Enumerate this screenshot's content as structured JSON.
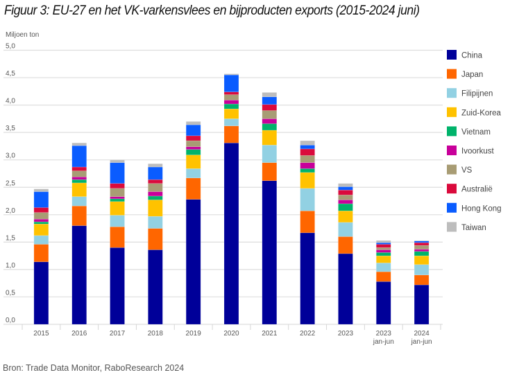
{
  "header": {
    "title": "Figuur 3: EU-27 en het VK-varkensvlees en bijproducten exports (2015-2024 juni)"
  },
  "footer": {
    "source": "Bron: Trade Data Monitor, RaboResearch 2024"
  },
  "chart_data": {
    "type": "bar",
    "stacked": true,
    "title": "Figuur 3: EU-27 en het VK-varkensvlees en bijproducten exports (2015-2024 juni)",
    "xlabel": "",
    "ylabel": "Miljoen ton",
    "ylim": [
      0,
      5.0
    ],
    "yticks": [
      "0,0",
      "0,5",
      "1,0",
      "1,5",
      "2,0",
      "2,5",
      "3,0",
      "3,5",
      "4,0",
      "4,5",
      "5,0"
    ],
    "ytick_values": [
      0,
      0.5,
      1.0,
      1.5,
      2.0,
      2.5,
      3.0,
      3.5,
      4.0,
      4.5,
      5.0
    ],
    "grid": true,
    "legend_position": "right",
    "categories": [
      {
        "line1": "2015",
        "line2": ""
      },
      {
        "line1": "2016",
        "line2": ""
      },
      {
        "line1": "2017",
        "line2": ""
      },
      {
        "line1": "2018",
        "line2": ""
      },
      {
        "line1": "2019",
        "line2": ""
      },
      {
        "line1": "2020",
        "line2": ""
      },
      {
        "line1": "2021",
        "line2": ""
      },
      {
        "line1": "2022",
        "line2": ""
      },
      {
        "line1": "2023",
        "line2": ""
      },
      {
        "line1": "2023",
        "line2": "jan-jun"
      },
      {
        "line1": "2024",
        "line2": "jan-jun"
      }
    ],
    "series": [
      {
        "name": "China",
        "color": "#000099",
        "values": [
          1.14,
          1.8,
          1.4,
          1.36,
          2.28,
          3.31,
          2.62,
          1.67,
          1.29,
          0.78,
          0.72
        ]
      },
      {
        "name": "Japan",
        "color": "#FF6600",
        "values": [
          0.32,
          0.36,
          0.38,
          0.39,
          0.39,
          0.31,
          0.33,
          0.4,
          0.31,
          0.18,
          0.18
        ]
      },
      {
        "name": "Filipijnen",
        "color": "#92D1E3",
        "values": [
          0.16,
          0.17,
          0.21,
          0.22,
          0.17,
          0.13,
          0.32,
          0.41,
          0.26,
          0.16,
          0.19
        ]
      },
      {
        "name": "Zuid-Korea",
        "color": "#FFC200",
        "values": [
          0.21,
          0.25,
          0.25,
          0.3,
          0.25,
          0.18,
          0.27,
          0.29,
          0.21,
          0.13,
          0.16
        ]
      },
      {
        "name": "Vietnam",
        "color": "#00B36B",
        "values": [
          0.04,
          0.06,
          0.05,
          0.07,
          0.1,
          0.09,
          0.12,
          0.07,
          0.13,
          0.06,
          0.08
        ]
      },
      {
        "name": "Ivoorkust",
        "color": "#C8009A",
        "values": [
          0.05,
          0.05,
          0.04,
          0.08,
          0.05,
          0.07,
          0.09,
          0.11,
          0.07,
          0.05,
          0.04
        ]
      },
      {
        "name": "VS",
        "color": "#A89C74",
        "values": [
          0.12,
          0.11,
          0.15,
          0.15,
          0.11,
          0.1,
          0.15,
          0.13,
          0.09,
          0.04,
          0.07
        ]
      },
      {
        "name": "Australië",
        "color": "#DA0A3C",
        "values": [
          0.09,
          0.07,
          0.09,
          0.07,
          0.09,
          0.05,
          0.11,
          0.12,
          0.09,
          0.06,
          0.05
        ]
      },
      {
        "name": "Hong Kong",
        "color": "#0A5CFF",
        "values": [
          0.29,
          0.39,
          0.38,
          0.23,
          0.2,
          0.31,
          0.14,
          0.07,
          0.06,
          0.03,
          0.03
        ]
      },
      {
        "name": "Taiwan",
        "color": "#BDBDBD",
        "values": [
          0.05,
          0.05,
          0.05,
          0.06,
          0.06,
          0.02,
          0.08,
          0.08,
          0.06,
          0.04,
          0.01
        ]
      }
    ]
  }
}
